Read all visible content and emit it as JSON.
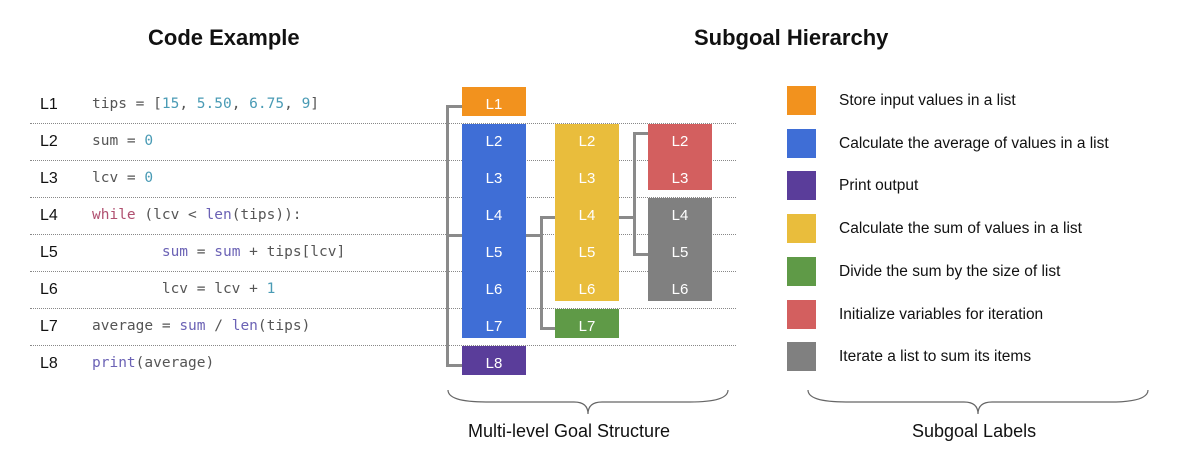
{
  "titles": {
    "code": "Code Example",
    "hierarchy": "Subgoal Hierarchy"
  },
  "code_lines": [
    {
      "num": "L1",
      "tokens": [
        [
          "plain",
          "tips = ["
        ],
        [
          "num",
          "15"
        ],
        [
          "plain",
          ", "
        ],
        [
          "num",
          "5.50"
        ],
        [
          "plain",
          ", "
        ],
        [
          "num",
          "6.75"
        ],
        [
          "plain",
          ", "
        ],
        [
          "num",
          "9"
        ],
        [
          "plain",
          "]"
        ]
      ]
    },
    {
      "num": "L2",
      "tokens": [
        [
          "plain",
          "sum = "
        ],
        [
          "num",
          "0"
        ]
      ]
    },
    {
      "num": "L3",
      "tokens": [
        [
          "plain",
          "lcv = "
        ],
        [
          "num",
          "0"
        ]
      ]
    },
    {
      "num": "L4",
      "tokens": [
        [
          "kw",
          "while"
        ],
        [
          "plain",
          " (lcv < "
        ],
        [
          "fn",
          "len"
        ],
        [
          "plain",
          "(tips)):"
        ]
      ]
    },
    {
      "num": "L5",
      "tokens": [
        [
          "plain",
          "        "
        ],
        [
          "var",
          "sum"
        ],
        [
          "plain",
          " = "
        ],
        [
          "var",
          "sum"
        ],
        [
          "plain",
          " + tips[lcv]"
        ]
      ]
    },
    {
      "num": "L6",
      "tokens": [
        [
          "plain",
          "        lcv = lcv + "
        ],
        [
          "num",
          "1"
        ]
      ]
    },
    {
      "num": "L7",
      "tokens": [
        [
          "plain",
          "average = "
        ],
        [
          "var",
          "sum"
        ],
        [
          "plain",
          " / "
        ],
        [
          "fn",
          "len"
        ],
        [
          "plain",
          "(tips)"
        ]
      ]
    },
    {
      "num": "L8",
      "tokens": [
        [
          "fn",
          "print"
        ],
        [
          "plain",
          "(average)"
        ]
      ]
    }
  ],
  "hierarchy_boxes": {
    "orange": [
      "L1"
    ],
    "blue": [
      "L2",
      "L3",
      "L4",
      "L5",
      "L6",
      "L7"
    ],
    "purple": [
      "L8"
    ],
    "yellow": [
      "L2",
      "L3",
      "L4",
      "L5",
      "L6"
    ],
    "green": [
      "L7"
    ],
    "red": [
      "L2",
      "L3"
    ],
    "gray": [
      "L4",
      "L5",
      "L6"
    ]
  },
  "legend": [
    {
      "color": "#f2921e",
      "label": "Store input values in a list"
    },
    {
      "color": "#3f6ed6",
      "label": "Calculate the average of values in a list"
    },
    {
      "color": "#5a3d9a",
      "label": "Print output"
    },
    {
      "color": "#e9bd3c",
      "label": "Calculate the sum of values in a list"
    },
    {
      "color": "#5f9a47",
      "label": "Divide the sum by the size of list"
    },
    {
      "color": "#d35f5f",
      "label": "Initialize variables for iteration"
    },
    {
      "color": "#808080",
      "label": "Iterate a list to sum its items"
    }
  ],
  "captions": {
    "structure": "Multi-level Goal Structure",
    "labels": "Subgoal Labels"
  },
  "colors": {
    "orange": "#f2921e",
    "blue": "#3f6ed6",
    "purple": "#5a3d9a",
    "yellow": "#e9bd3c",
    "green": "#5f9a47",
    "red": "#d35f5f",
    "gray": "#808080"
  }
}
